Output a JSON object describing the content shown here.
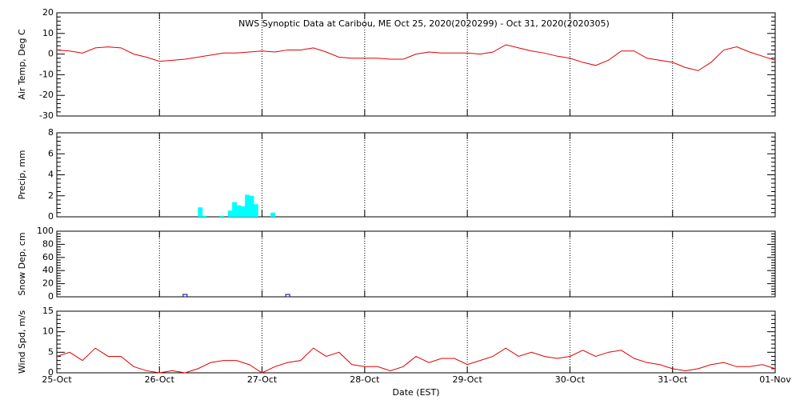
{
  "chart_data": [
    {
      "type": "line",
      "title": "NWS Synoptic Data at Caribou, ME   Oct 25, 2020(2020299) - Oct 31, 2020(2020305)",
      "ylabel": "Air Temp, Deg C",
      "color": "#e00000",
      "grid": true,
      "x": [
        0,
        3,
        6,
        9,
        12,
        15,
        18,
        21,
        24,
        27,
        30,
        33,
        36,
        39,
        42,
        45,
        48,
        51,
        54,
        57,
        60,
        63,
        66,
        69,
        72,
        75,
        78,
        81,
        84,
        87,
        90,
        93,
        96,
        99,
        102,
        105,
        108,
        111,
        114,
        117,
        120,
        123,
        126,
        129,
        132,
        135,
        138,
        141,
        144,
        147,
        150,
        153,
        156,
        159,
        162,
        165,
        168
      ],
      "values": [
        2,
        1.5,
        0.5,
        3,
        3.5,
        3,
        0,
        -1.5,
        -3.5,
        -3,
        -2.5,
        -1.5,
        -0.5,
        0.5,
        0.5,
        1,
        1.5,
        1,
        2,
        2,
        3,
        1,
        -1.5,
        -2,
        -2,
        -2,
        -2.5,
        -2.5,
        0,
        1,
        0.5,
        0.5,
        0.5,
        0,
        1,
        4.5,
        3,
        1.5,
        0.5,
        -1,
        -2,
        -4,
        -5.5,
        -3,
        1.5,
        1.5,
        -2,
        -3,
        -4,
        -6.5,
        -8,
        -4,
        2,
        3.5,
        1,
        -1,
        -3
      ],
      "xlim": [
        0,
        168
      ],
      "ylim": [
        -30,
        20
      ],
      "yticks": [
        -30,
        -20,
        -10,
        0,
        10,
        20
      ]
    },
    {
      "type": "bar",
      "ylabel": "Precip, mm",
      "color": "#00ffff",
      "grid": true,
      "x": [
        33,
        34,
        38,
        40,
        41,
        42,
        43,
        44,
        45,
        46,
        50
      ],
      "values": [
        0.9,
        0.1,
        0.1,
        0.6,
        1.4,
        1.1,
        1.0,
        2.1,
        2.0,
        1.2,
        0.4
      ],
      "xlim": [
        0,
        168
      ],
      "ylim": [
        0,
        8
      ],
      "yticks": [
        0,
        2,
        4,
        6,
        8
      ]
    },
    {
      "type": "scatter",
      "ylabel": "Snow Dep, cm",
      "color": "#000080",
      "grid": true,
      "x": [
        30,
        54
      ],
      "values": [
        0,
        0
      ],
      "xlim": [
        0,
        168
      ],
      "ylim": [
        0,
        100
      ],
      "yticks": [
        0,
        20,
        40,
        60,
        80,
        100
      ]
    },
    {
      "type": "line",
      "ylabel": "Wind Spd, m/s",
      "xlabel": "Date (EST)",
      "color": "#e00000",
      "grid": true,
      "x": [
        0,
        3,
        6,
        9,
        12,
        15,
        18,
        21,
        24,
        27,
        30,
        33,
        36,
        39,
        42,
        45,
        48,
        51,
        54,
        57,
        60,
        63,
        66,
        69,
        72,
        75,
        78,
        81,
        84,
        87,
        90,
        93,
        96,
        99,
        102,
        105,
        108,
        111,
        114,
        117,
        120,
        123,
        126,
        129,
        132,
        135,
        138,
        141,
        144,
        147,
        150,
        153,
        156,
        159,
        162,
        165,
        168
      ],
      "values": [
        4,
        5,
        3,
        6,
        4,
        4,
        1.5,
        0.5,
        0,
        0.5,
        0,
        1,
        2.5,
        3,
        3,
        2,
        0,
        1.5,
        2.5,
        3,
        6,
        4,
        5,
        2,
        1.5,
        1.5,
        0.5,
        1.5,
        4,
        2.5,
        3.5,
        3.5,
        2,
        3,
        4,
        6,
        4,
        5,
        4,
        3.5,
        4,
        5.5,
        4,
        5,
        5.5,
        3.5,
        2.5,
        2,
        1,
        0.5,
        1,
        2,
        2.5,
        1.5,
        1.5,
        2,
        1
      ],
      "xlim": [
        0,
        168
      ],
      "ylim": [
        0,
        15
      ],
      "yticks": [
        0,
        5,
        10,
        15
      ],
      "xticks": [
        {
          "value": 0,
          "label": "25-Oct"
        },
        {
          "value": 24,
          "label": "26-Oct"
        },
        {
          "value": 48,
          "label": "27-Oct"
        },
        {
          "value": 72,
          "label": "28-Oct"
        },
        {
          "value": 96,
          "label": "29-Oct"
        },
        {
          "value": 120,
          "label": "30-Oct"
        },
        {
          "value": 144,
          "label": "31-Oct"
        },
        {
          "value": 168,
          "label": "01-Nov"
        }
      ]
    }
  ]
}
